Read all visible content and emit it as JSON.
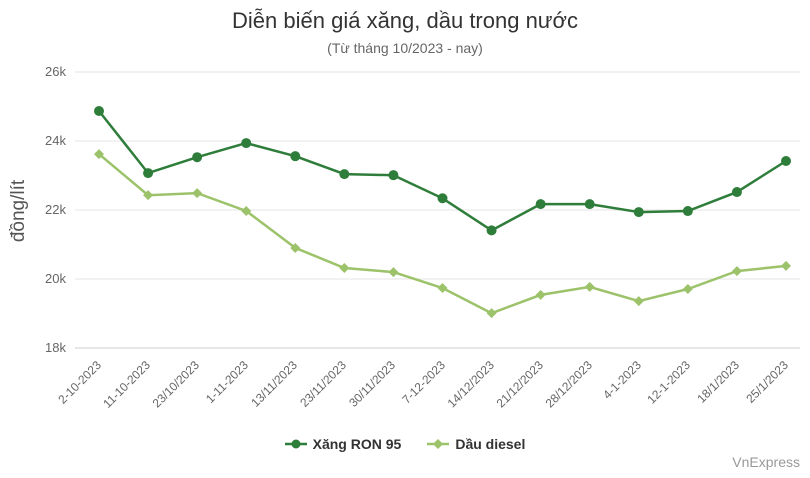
{
  "chart_data": {
    "type": "line",
    "title": "Diễn biến giá xăng, dầu trong nước",
    "subtitle": "(Từ tháng 10/2023 - nay)",
    "xlabel": "",
    "ylabel": "đồng/lít",
    "ylim": [
      18000,
      26000
    ],
    "yticks": [
      18000,
      20000,
      22000,
      24000,
      26000
    ],
    "ytick_labels": [
      "18k",
      "20k",
      "22k",
      "24k",
      "26k"
    ],
    "grid": true,
    "legend_position": "bottom",
    "categories": [
      "2-10-2023",
      "11-10-2023",
      "23/10/2023",
      "1-11-2023",
      "13/11/2023",
      "23/11/2023",
      "30/11/2023",
      "7-12-2023",
      "14/12/2023",
      "21/12/2023",
      "28/12/2023",
      "4-1-2023",
      "12-1-2023",
      "18/1/2023",
      "25/1/2023"
    ],
    "series": [
      {
        "name": "Xăng RON 95",
        "color": "#2e7d3a",
        "marker": "circle",
        "values": [
          24870,
          23070,
          23530,
          23940,
          23560,
          23040,
          23010,
          22340,
          21410,
          22170,
          22170,
          21940,
          21970,
          22520,
          23420
        ]
      },
      {
        "name": "Dầu diesel",
        "color": "#9cc26a",
        "marker": "diamond",
        "values": [
          23620,
          22430,
          22490,
          21970,
          20900,
          20320,
          20200,
          19740,
          19010,
          19540,
          19770,
          19360,
          19710,
          20230,
          20380
        ]
      }
    ]
  },
  "header": {
    "title": "Diễn biến giá xăng, dầu trong nước",
    "subtitle": "(Từ tháng 10/2023 - nay)"
  },
  "axis": {
    "ylabel": "đồng/lít"
  },
  "legend": {
    "items": [
      "Xăng RON 95",
      "Dầu diesel"
    ]
  },
  "credit": "VnExpress"
}
